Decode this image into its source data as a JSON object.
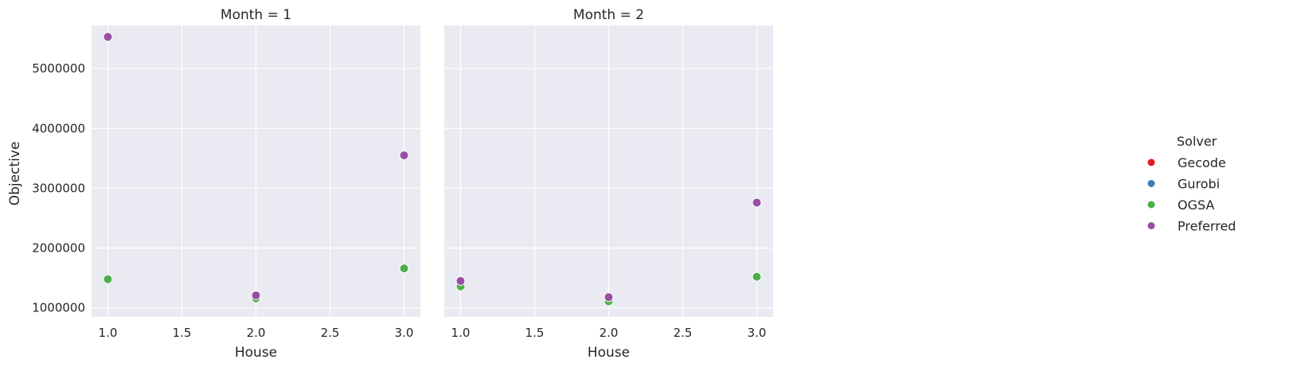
{
  "chart_data": {
    "type": "scatter",
    "facet_variable": "Month",
    "facets": [
      {
        "title": "Month = 1",
        "month": 1
      },
      {
        "title": "Month = 2",
        "month": 2
      }
    ],
    "xlabel": "House",
    "ylabel": "Objective",
    "xlim": [
      0.89,
      3.11
    ],
    "ylim": [
      850000,
      5720000
    ],
    "xticks": [
      "1.0",
      "1.5",
      "2.0",
      "2.5",
      "3.0"
    ],
    "xtick_values": [
      1.0,
      1.5,
      2.0,
      2.5,
      3.0
    ],
    "yticks": [
      "1000000",
      "2000000",
      "3000000",
      "4000000",
      "5000000"
    ],
    "ytick_values": [
      1000000,
      2000000,
      3000000,
      4000000,
      5000000
    ],
    "grid": true,
    "legend_title": "Solver",
    "legend_position": "right",
    "series": [
      {
        "name": "Gecode",
        "color": "#e41a1c",
        "points": {
          "1": [],
          "2": []
        }
      },
      {
        "name": "Gurobi",
        "color": "#377eb8",
        "points": {
          "1": [],
          "2": []
        }
      },
      {
        "name": "OGSA",
        "color": "#4daf4a",
        "points": {
          "1": [
            [
              1,
              1480000
            ],
            [
              2,
              1160000
            ],
            [
              3,
              1660000
            ]
          ],
          "2": [
            [
              1,
              1360000
            ],
            [
              2,
              1110000
            ],
            [
              3,
              1520000
            ]
          ]
        }
      },
      {
        "name": "Preferred",
        "color": "#984ea3",
        "points": {
          "1": [
            [
              1,
              5530000
            ],
            [
              2,
              1210000
            ],
            [
              3,
              3550000
            ]
          ],
          "2": [
            [
              1,
              1450000
            ],
            [
              2,
              1180000
            ],
            [
              3,
              2760000
            ]
          ]
        }
      }
    ]
  }
}
